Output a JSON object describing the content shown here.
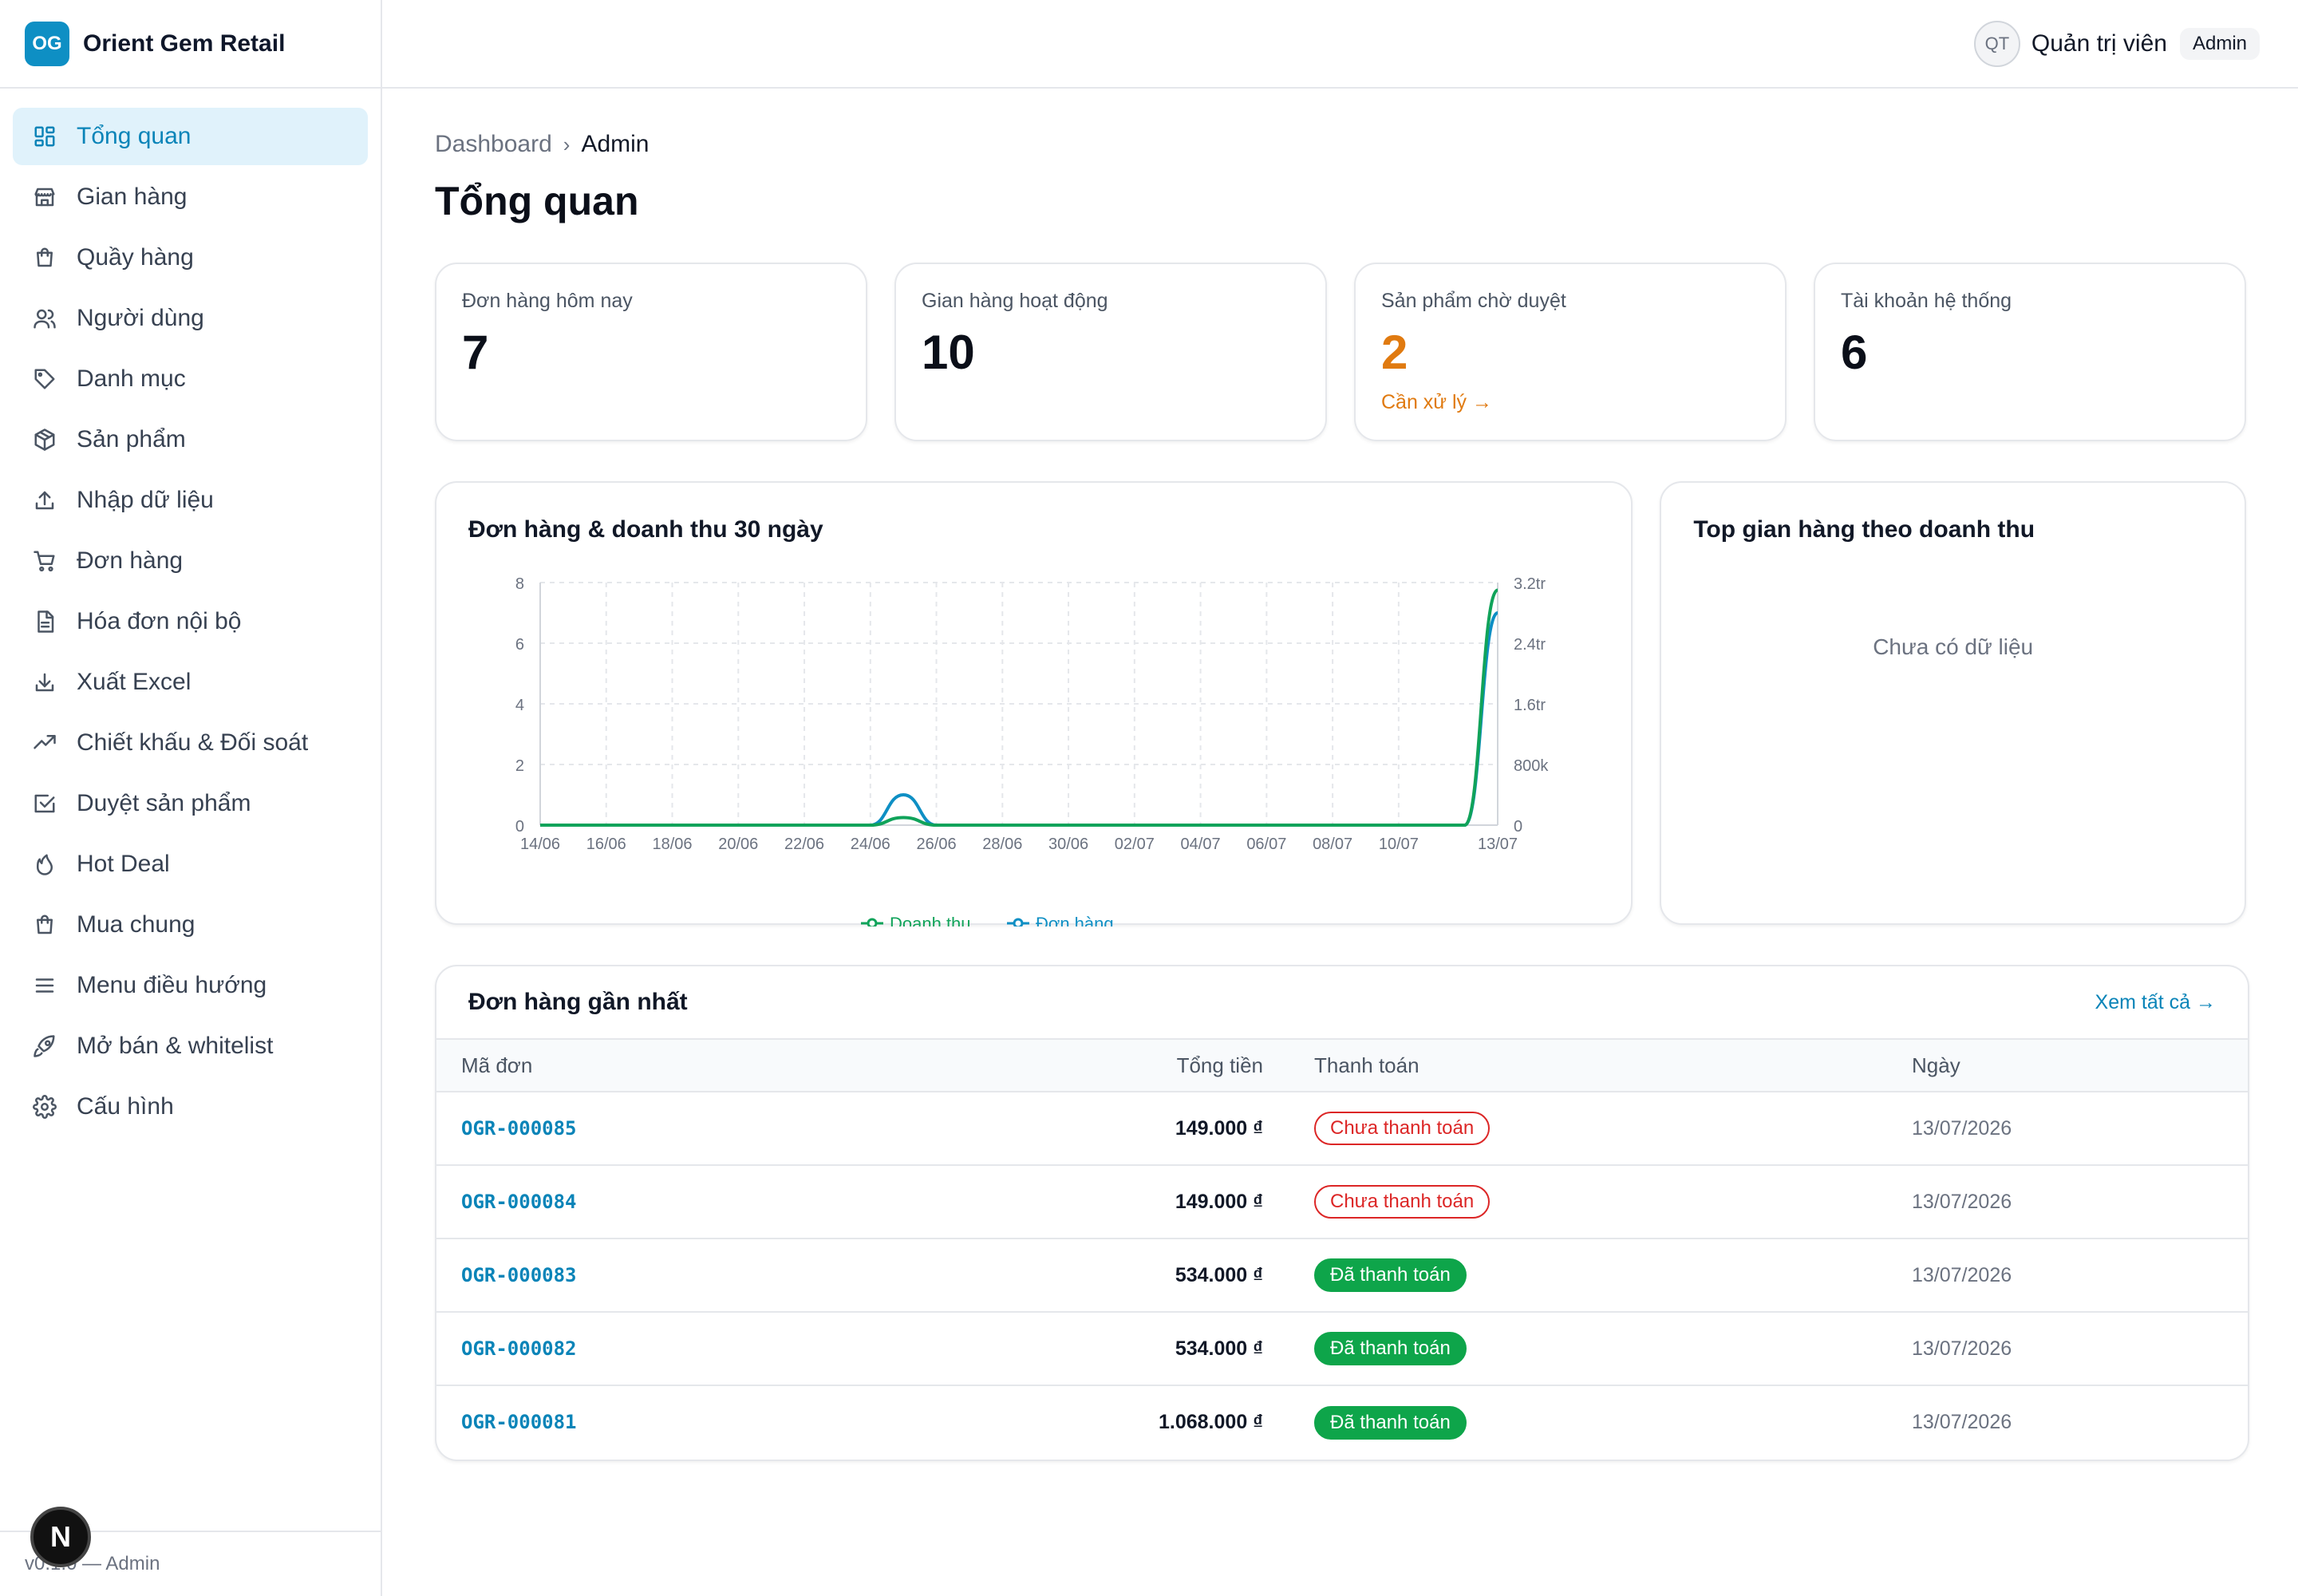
{
  "brand": {
    "logo": "OG",
    "name": "Orient Gem Retail"
  },
  "nav": [
    {
      "label": "Tổng quan",
      "icon": "dashboard-icon",
      "active": true
    },
    {
      "label": "Gian hàng",
      "icon": "store-icon"
    },
    {
      "label": "Quầy hàng",
      "icon": "bag-icon"
    },
    {
      "label": "Người dùng",
      "icon": "users-icon"
    },
    {
      "label": "Danh mục",
      "icon": "tag-icon"
    },
    {
      "label": "Sản phẩm",
      "icon": "package-icon"
    },
    {
      "label": "Nhập dữ liệu",
      "icon": "upload-icon"
    },
    {
      "label": "Đơn hàng",
      "icon": "cart-icon"
    },
    {
      "label": "Hóa đơn nội bộ",
      "icon": "file-icon"
    },
    {
      "label": "Xuất Excel",
      "icon": "download-icon"
    },
    {
      "label": "Chiết khấu & Đối soát",
      "icon": "trending-up-icon"
    },
    {
      "label": "Duyệt sản phẩm",
      "icon": "check-square-icon"
    },
    {
      "label": "Hot Deal",
      "icon": "flame-icon"
    },
    {
      "label": "Mua chung",
      "icon": "shopping-bag-icon"
    },
    {
      "label": "Menu điều hướng",
      "icon": "menu-icon"
    },
    {
      "label": "Mở bán & whitelist",
      "icon": "rocket-icon"
    },
    {
      "label": "Cấu hình",
      "icon": "settings-icon"
    }
  ],
  "footer": {
    "version": "v0.1.0 — Admin",
    "badge": "N"
  },
  "header": {
    "avatar": "QT",
    "user_name": "Quản trị viên",
    "role": "Admin"
  },
  "breadcrumb": {
    "root": "Dashboard",
    "current": "Admin"
  },
  "page_title": "Tổng quan",
  "stats": [
    {
      "label": "Đơn hàng hôm nay",
      "value": "7"
    },
    {
      "label": "Gian hàng hoạt động",
      "value": "10"
    },
    {
      "label": "Sản phẩm chờ duyệt",
      "value": "2",
      "link": "Cần xử lý →"
    },
    {
      "label": "Tài khoản hệ thống",
      "value": "6"
    }
  ],
  "chart_card": {
    "title": "Đơn hàng & doanh thu 30 ngày"
  },
  "chart_data": {
    "type": "line",
    "x_tick_labels": [
      "14/06",
      "16/06",
      "18/06",
      "20/06",
      "22/06",
      "24/06",
      "26/06",
      "28/06",
      "30/06",
      "02/07",
      "04/07",
      "06/07",
      "08/07",
      "10/07",
      "13/07"
    ],
    "y_left_ticks": [
      "0",
      "2",
      "4",
      "6",
      "8"
    ],
    "y_right_ticks": [
      "0",
      "800k",
      "1.6tr",
      "2.4tr",
      "3.2tr"
    ],
    "y_left_range": [
      0,
      8
    ],
    "y_right_range": [
      0,
      3200000
    ],
    "grid": true,
    "legend_position": "bottom",
    "series": [
      {
        "name": "Doanh thu",
        "color": "#10a35a",
        "axis": "right",
        "x": [
          "14/06",
          "15/06",
          "16/06",
          "17/06",
          "18/06",
          "19/06",
          "20/06",
          "21/06",
          "22/06",
          "23/06",
          "24/06",
          "25/06",
          "26/06",
          "27/06",
          "28/06",
          "29/06",
          "30/06",
          "01/07",
          "02/07",
          "03/07",
          "04/07",
          "05/07",
          "06/07",
          "07/07",
          "08/07",
          "09/07",
          "10/07",
          "11/07",
          "12/07",
          "13/07"
        ],
        "values": [
          0,
          0,
          0,
          0,
          0,
          0,
          0,
          0,
          0,
          0,
          0,
          100000,
          0,
          0,
          0,
          0,
          0,
          0,
          0,
          0,
          0,
          0,
          0,
          0,
          0,
          0,
          0,
          0,
          0,
          3100000
        ]
      },
      {
        "name": "Đơn hàng",
        "color": "#0e8fc4",
        "axis": "left",
        "x": [
          "14/06",
          "15/06",
          "16/06",
          "17/06",
          "18/06",
          "19/06",
          "20/06",
          "21/06",
          "22/06",
          "23/06",
          "24/06",
          "25/06",
          "26/06",
          "27/06",
          "28/06",
          "29/06",
          "30/06",
          "01/07",
          "02/07",
          "03/07",
          "04/07",
          "05/07",
          "06/07",
          "07/07",
          "08/07",
          "09/07",
          "10/07",
          "11/07",
          "12/07",
          "13/07"
        ],
        "values": [
          0,
          0,
          0,
          0,
          0,
          0,
          0,
          0,
          0,
          0,
          0,
          1,
          0,
          0,
          0,
          0,
          0,
          0,
          0,
          0,
          0,
          0,
          0,
          0,
          0,
          0,
          0,
          0,
          0,
          7
        ]
      }
    ]
  },
  "top_stores": {
    "title": "Top gian hàng theo doanh thu",
    "empty": "Chưa có dữ liệu"
  },
  "orders": {
    "title": "Đơn hàng gần nhất",
    "view_all": "Xem tất cả →",
    "columns": [
      "Mã đơn",
      "Tổng tiền",
      "Thanh toán",
      "Ngày"
    ],
    "rows": [
      {
        "code": "OGR-000085",
        "total": "149.000 ₫",
        "status": "Chưa thanh toán",
        "paid": false,
        "date": "13/07/2026"
      },
      {
        "code": "OGR-000084",
        "total": "149.000 ₫",
        "status": "Chưa thanh toán",
        "paid": false,
        "date": "13/07/2026"
      },
      {
        "code": "OGR-000083",
        "total": "534.000 ₫",
        "status": "Đã thanh toán",
        "paid": true,
        "date": "13/07/2026"
      },
      {
        "code": "OGR-000082",
        "total": "534.000 ₫",
        "status": "Đã thanh toán",
        "paid": true,
        "date": "13/07/2026"
      },
      {
        "code": "OGR-000081",
        "total": "1.068.000 ₫",
        "status": "Đã thanh toán",
        "paid": true,
        "date": "13/07/2026"
      }
    ]
  }
}
